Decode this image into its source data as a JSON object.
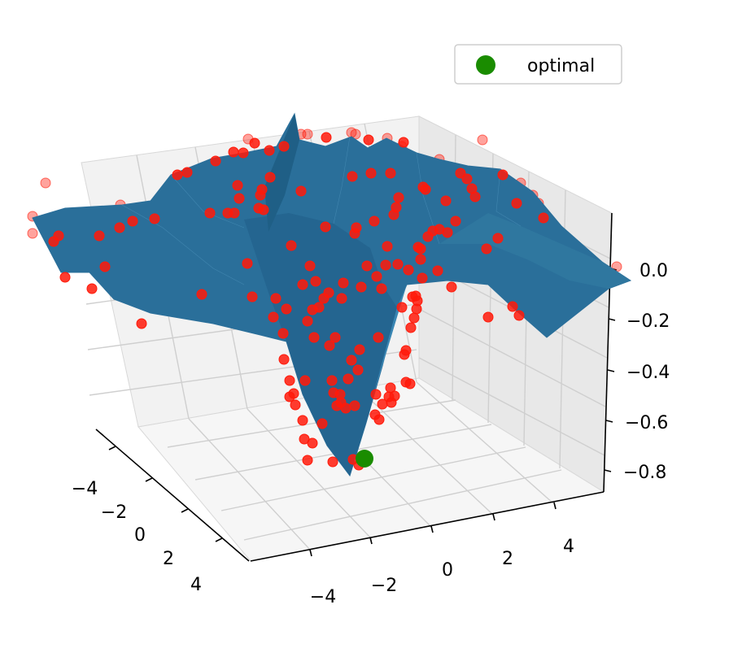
{
  "chart_data": {
    "type": "surface3d",
    "title": "",
    "xlabel": "",
    "ylabel": "",
    "zlabel": "",
    "x_ticks": [
      "−4",
      "−2",
      "0",
      "2",
      "4"
    ],
    "y_ticks": [
      "−4",
      "−2",
      "0",
      "2",
      "4"
    ],
    "z_ticks": [
      "0.0",
      "−0.2",
      "−0.4",
      "−0.6",
      "−0.8"
    ],
    "xlim": [
      -5,
      5
    ],
    "ylim": [
      -5,
      5
    ],
    "zlim": [
      -0.9,
      0.1
    ],
    "grid": true,
    "legend": {
      "placement": "top-right",
      "entries": [
        {
          "label": "optimal",
          "color": "#1a8c00"
        }
      ]
    },
    "surface_color": "#2a6f9a",
    "sample_color": "#ff1a0a",
    "optimal": {
      "x": 0,
      "y": -1,
      "z": -0.75
    }
  }
}
